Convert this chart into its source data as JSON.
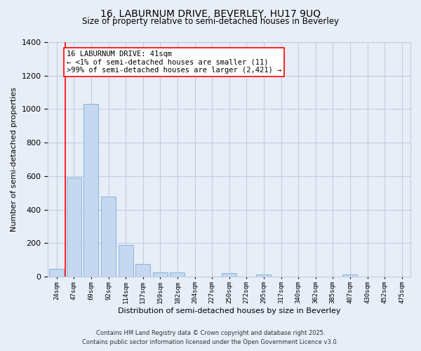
{
  "title_line1": "16, LABURNUM DRIVE, BEVERLEY, HU17 9UQ",
  "title_line2": "Size of property relative to semi-detached houses in Beverley",
  "xlabel": "Distribution of semi-detached houses by size in Beverley",
  "ylabel": "Number of semi-detached properties",
  "bar_labels": [
    "24sqm",
    "47sqm",
    "69sqm",
    "92sqm",
    "114sqm",
    "137sqm",
    "159sqm",
    "182sqm",
    "204sqm",
    "227sqm",
    "250sqm",
    "272sqm",
    "295sqm",
    "317sqm",
    "340sqm",
    "362sqm",
    "385sqm",
    "407sqm",
    "430sqm",
    "452sqm",
    "475sqm"
  ],
  "bar_values": [
    45,
    590,
    1030,
    480,
    190,
    75,
    25,
    25,
    0,
    0,
    20,
    0,
    15,
    0,
    0,
    0,
    0,
    15,
    0,
    0,
    0
  ],
  "bar_color": "#c5d8f0",
  "bar_edge_color": "#7aacd4",
  "ylim": [
    0,
    1400
  ],
  "yticks": [
    0,
    200,
    400,
    600,
    800,
    1000,
    1200,
    1400
  ],
  "annotation_title": "16 LABURNUM DRIVE: 41sqm",
  "annotation_line2": "← <1% of semi-detached houses are smaller (11)",
  "annotation_line3": ">99% of semi-detached houses are larger (2,421) →",
  "bg_color": "#e8eef8",
  "grid_color": "#c0cce0",
  "footer_line1": "Contains HM Land Registry data © Crown copyright and database right 2025.",
  "footer_line2": "Contains public sector information licensed under the Open Government Licence v3.0."
}
